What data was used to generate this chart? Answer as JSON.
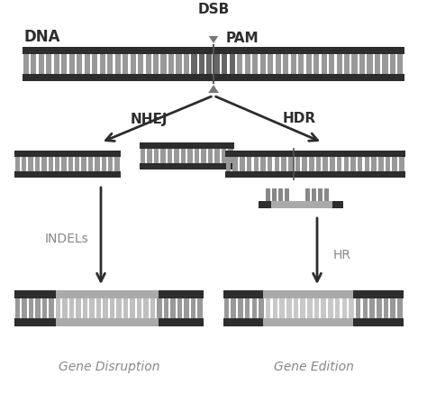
{
  "bg_color": "#ffffff",
  "dark_color": "#2d2d2d",
  "stripe_color": "#999999",
  "pam_stripe_color": "#666666",
  "text_dark": "#2d2d2d",
  "text_gray": "#888888",
  "arrow_gray": "#555555",
  "tri_gray": "#777777",
  "insert_light": "#bbbbbb",
  "insert_lighter": "#cccccc",
  "title": "DSB",
  "dna_label": "DNA",
  "pam_label": "PAM",
  "nhej_label": "NHEJ",
  "hdr_label": "HDR",
  "indels_label": "INDELs",
  "hr_label": "HR",
  "gene_disruption_label": "Gene Disruption",
  "gene_edition_label": "Gene Edition"
}
